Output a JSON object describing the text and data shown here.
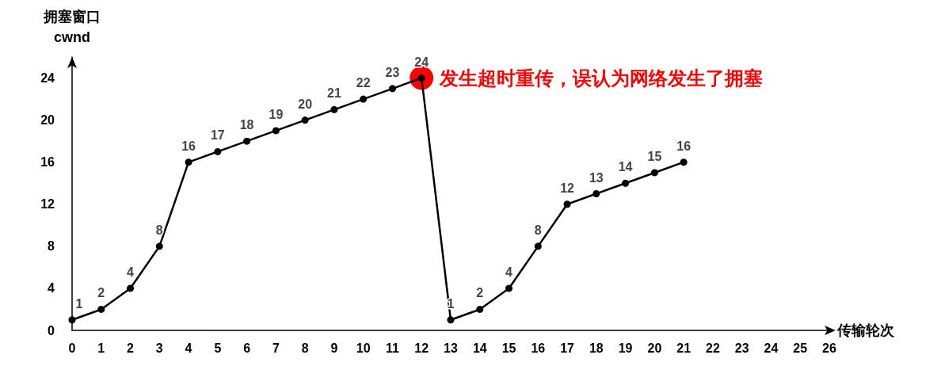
{
  "chart_data": {
    "type": "line",
    "xlabel": "传输轮次",
    "ylabel": "拥塞窗口\ncwnd",
    "x": [
      0,
      1,
      2,
      3,
      4,
      5,
      6,
      7,
      8,
      9,
      10,
      11,
      12,
      13,
      14,
      15,
      16,
      17,
      18,
      19,
      20,
      21
    ],
    "series": [
      {
        "color": "#000000",
        "values": [
          1,
          2,
          4,
          8,
          16,
          17,
          18,
          19,
          20,
          21,
          22,
          23,
          24,
          1,
          2,
          4,
          8,
          12,
          13,
          14,
          15,
          16
        ]
      }
    ],
    "xlim": [
      0,
      26
    ],
    "xticks": [
      0,
      1,
      2,
      3,
      4,
      5,
      6,
      7,
      8,
      9,
      10,
      11,
      12,
      13,
      14,
      15,
      16,
      17,
      18,
      19,
      20,
      21,
      22,
      23,
      24,
      25,
      26
    ],
    "ylim": [
      0,
      26
    ],
    "yticks": [
      0,
      4,
      8,
      12,
      16,
      20,
      24
    ],
    "annotations": [
      {
        "text": "发生超时重传，误认为网络发生了拥塞",
        "x": 12,
        "y": 24
      }
    ],
    "data_labels": true,
    "grid": false,
    "marker": "circle",
    "line_style": "solid"
  }
}
